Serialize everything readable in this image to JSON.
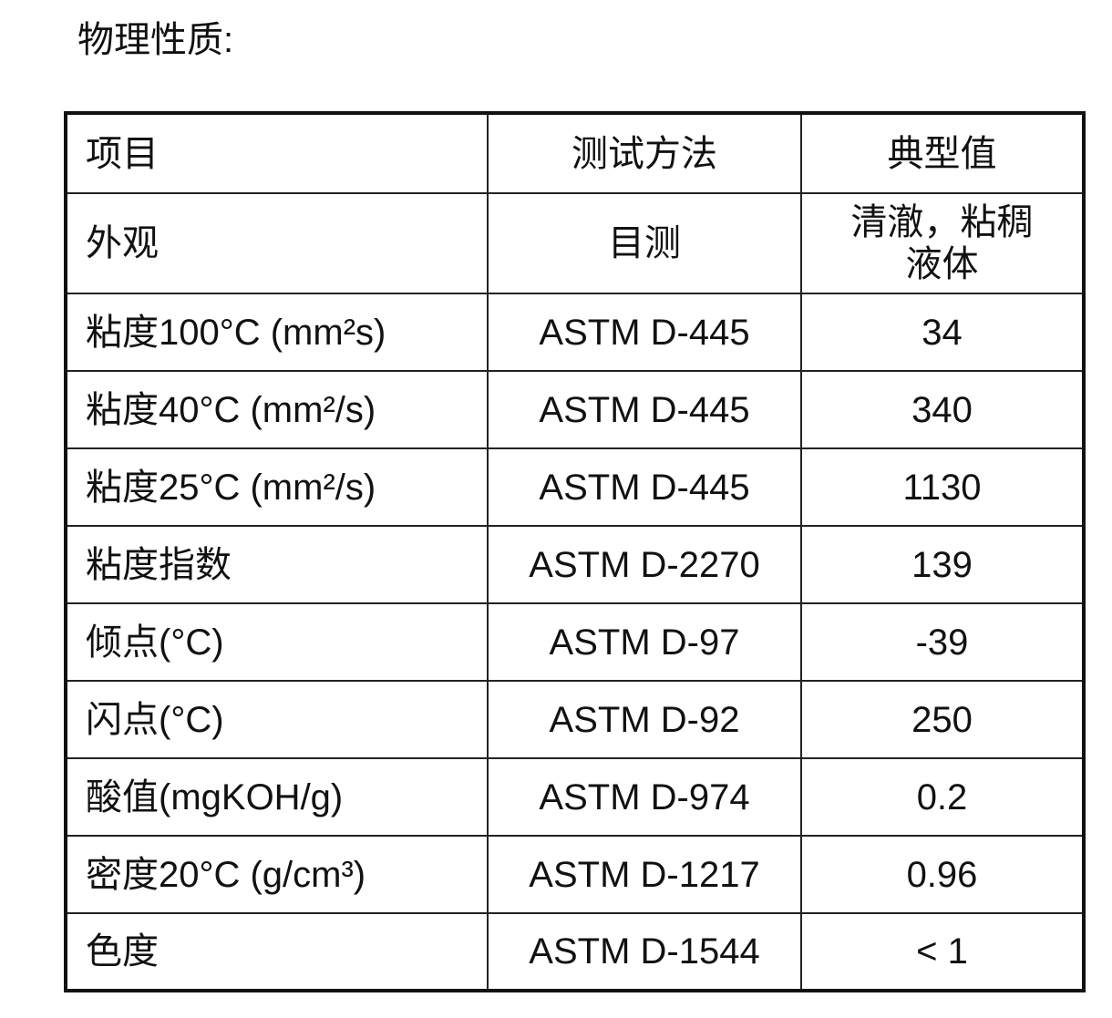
{
  "title": "物理性质:",
  "table": {
    "header": [
      "项目",
      "测试方法",
      "典型值"
    ],
    "rows": [
      [
        "外观",
        "目测",
        "清澈，粘稠液体"
      ],
      [
        "粘度100°C (mm²s)",
        "ASTM D-445",
        "34"
      ],
      [
        "粘度40°C (mm²/s)",
        "ASTM D-445",
        "340"
      ],
      [
        "粘度25°C (mm²/s)",
        "ASTM D-445",
        "1130"
      ],
      [
        "粘度指数",
        "ASTM D-2270",
        "139"
      ],
      [
        "倾点(°C)",
        "ASTM D-97",
        "-39"
      ],
      [
        "闪点(°C)",
        "ASTM D-92",
        "250"
      ],
      [
        "酸值(mgKOH/g)",
        "ASTM D-974",
        "0.2"
      ],
      [
        "密度20°C (g/cm³)",
        "ASTM D-1217",
        "0.96"
      ],
      [
        "色度",
        "ASTM D-1544",
        "< 1"
      ]
    ]
  }
}
